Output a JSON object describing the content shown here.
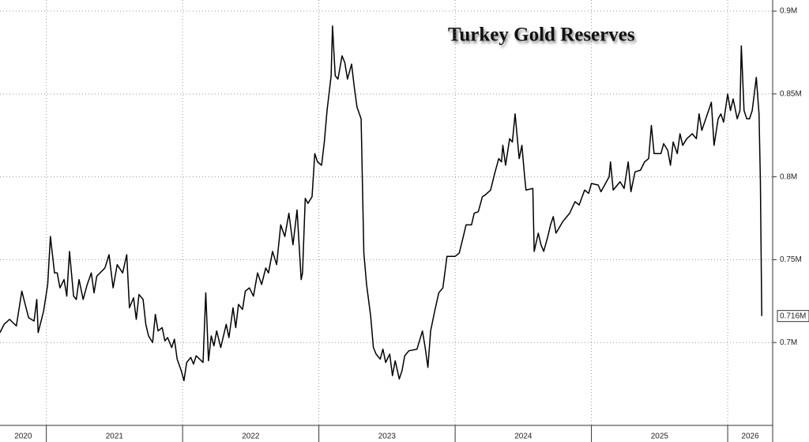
{
  "chart_data": {
    "type": "line",
    "title": "Turkey Gold Reserves",
    "x": [
      2020.66,
      2020.69,
      2020.73,
      2020.78,
      2020.82,
      2020.87,
      2020.91,
      2020.93,
      2020.94,
      2020.98,
      2021.01,
      2021.03,
      2021.06,
      2021.08,
      2021.1,
      2021.13,
      2021.15,
      2021.17,
      2021.2,
      2021.22,
      2021.24,
      2021.27,
      2021.3,
      2021.33,
      2021.35,
      2021.37,
      2021.43,
      2021.46,
      2021.49,
      2021.52,
      2021.56,
      2021.59,
      2021.61,
      2021.64,
      2021.66,
      2021.68,
      2021.71,
      2021.73,
      2021.75,
      2021.78,
      2021.8,
      2021.82,
      2021.85,
      2021.87,
      2021.89,
      2021.92,
      2021.94,
      2021.96,
      2021.99,
      2022.01,
      2022.03,
      2022.06,
      2022.08,
      2022.1,
      2022.15,
      2022.17,
      2022.19,
      2022.21,
      2022.23,
      2022.25,
      2022.28,
      2022.3,
      2022.32,
      2022.34,
      2022.37,
      2022.39,
      2022.41,
      2022.44,
      2022.46,
      2022.49,
      2022.52,
      2022.55,
      2022.58,
      2022.61,
      2022.63,
      2022.66,
      2022.69,
      2022.72,
      2022.75,
      2022.78,
      2022.81,
      2022.84,
      2022.87,
      2022.88,
      2022.9,
      2022.92,
      2022.95,
      2022.97,
      2022.99,
      2023.02,
      2023.04,
      2023.06,
      2023.09,
      2023.1,
      2023.12,
      2023.14,
      2023.17,
      2023.19,
      2023.21,
      2023.24,
      2023.26,
      2023.28,
      2023.31,
      2023.33,
      2023.35,
      2023.38,
      2023.4,
      2023.42,
      2023.45,
      2023.47,
      2023.49,
      2023.52,
      2023.54,
      2023.56,
      2023.59,
      2023.61,
      2023.63,
      2023.66,
      2023.72,
      2023.76,
      2023.78,
      2023.8,
      2023.82,
      2023.85,
      2023.88,
      2023.91,
      2023.94,
      2024.0,
      2024.03,
      2024.06,
      2024.08,
      2024.12,
      2024.14,
      2024.17,
      2024.2,
      2024.22,
      2024.26,
      2024.29,
      2024.32,
      2024.34,
      2024.35,
      2024.37,
      2024.4,
      2024.42,
      2024.44,
      2024.47,
      2024.49,
      2024.51,
      2024.52,
      2024.57,
      2024.58,
      2024.61,
      2024.63,
      2024.65,
      2024.68,
      2024.7,
      2024.72,
      2024.74,
      2024.79,
      2024.84,
      2024.88,
      2024.91,
      2024.95,
      2024.98,
      2025.0,
      2025.05,
      2025.07,
      2025.13,
      2025.14,
      2025.16,
      2025.21,
      2025.24,
      2025.27,
      2025.29,
      2025.32,
      2025.36,
      2025.39,
      2025.42,
      2025.44,
      2025.46,
      2025.51,
      2025.53,
      2025.56,
      2025.58,
      2025.6,
      2025.63,
      2025.65,
      2025.67,
      2025.7,
      2025.74,
      2025.77,
      2025.79,
      2025.81,
      2025.86,
      2025.88,
      2025.9,
      2025.93,
      2025.95,
      2025.97,
      2026.0,
      2026.02,
      2026.04,
      2026.07,
      2026.09,
      2026.1,
      2026.12,
      2026.14,
      2026.16,
      2026.18,
      2026.21,
      2026.23,
      2026.24,
      2026.25
    ],
    "values": [
      706000,
      711000,
      714000,
      710000,
      731000,
      715000,
      713000,
      726000,
      706000,
      719000,
      735000,
      764000,
      742000,
      742000,
      733000,
      738000,
      728000,
      755000,
      728000,
      726000,
      738000,
      726000,
      735000,
      742000,
      730000,
      740000,
      745000,
      753000,
      733000,
      747000,
      742000,
      753000,
      721000,
      727000,
      714000,
      729000,
      726000,
      711000,
      704000,
      700000,
      717000,
      707000,
      709000,
      701000,
      703000,
      697000,
      702000,
      690000,
      683000,
      677000,
      688000,
      691000,
      687000,
      692000,
      688000,
      730000,
      689000,
      704000,
      698000,
      707000,
      697000,
      704000,
      711000,
      703000,
      721000,
      709000,
      723000,
      720000,
      731000,
      733000,
      728000,
      742000,
      735000,
      745000,
      742000,
      755000,
      747000,
      771000,
      764000,
      778000,
      759000,
      780000,
      738000,
      742000,
      787000,
      784000,
      788000,
      814000,
      809000,
      807000,
      821000,
      840000,
      861000,
      891000,
      861000,
      859000,
      873000,
      869000,
      859000,
      868000,
      854000,
      842000,
      835000,
      754000,
      735000,
      716000,
      697000,
      693000,
      690000,
      696000,
      688000,
      693000,
      680000,
      689000,
      678000,
      683000,
      692000,
      695000,
      696000,
      707000,
      697000,
      685000,
      707000,
      719000,
      730000,
      733000,
      752000,
      752000,
      754000,
      764000,
      771000,
      771000,
      778000,
      779000,
      788000,
      789000,
      792000,
      802000,
      811000,
      809000,
      819000,
      807000,
      823000,
      821000,
      838000,
      811000,
      819000,
      800000,
      792000,
      793000,
      755000,
      766000,
      759000,
      755000,
      764000,
      771000,
      776000,
      766000,
      773000,
      778000,
      785000,
      783000,
      792000,
      790000,
      796000,
      795000,
      791000,
      800000,
      809000,
      792000,
      797000,
      793000,
      809000,
      791000,
      803000,
      804000,
      809000,
      811000,
      831000,
      814000,
      814000,
      820000,
      816000,
      807000,
      821000,
      814000,
      826000,
      819000,
      823000,
      826000,
      823000,
      838000,
      828000,
      840000,
      845000,
      819000,
      835000,
      838000,
      833000,
      850000,
      840000,
      847000,
      835000,
      840000,
      879000,
      840000,
      835000,
      835000,
      840000,
      860000,
      838000,
      797000,
      716000
    ],
    "value_labels": [
      null,
      null,
      null,
      null,
      null,
      null,
      null,
      null,
      null,
      null,
      null,
      null,
      null,
      null,
      null,
      null,
      null,
      null,
      null,
      null,
      null,
      null,
      null,
      null,
      null,
      null,
      null,
      null,
      null,
      null,
      null,
      null,
      null,
      null,
      null,
      null,
      null,
      null,
      null,
      null,
      null,
      null,
      null,
      null,
      null,
      null,
      null,
      null,
      null,
      null,
      null,
      null,
      null,
      null,
      null,
      null,
      null,
      null,
      null,
      null,
      null,
      null,
      null,
      null,
      null,
      null,
      null,
      null,
      null,
      null,
      null,
      null,
      null,
      null,
      null,
      null,
      null,
      null,
      null,
      null,
      null,
      null,
      null,
      null,
      null,
      null,
      null,
      null,
      null,
      null,
      null,
      null,
      null,
      null,
      null,
      null,
      null,
      null,
      null,
      null,
      null,
      null,
      null,
      null,
      null,
      null,
      null,
      null,
      null,
      null,
      null,
      null,
      null,
      null,
      null,
      null,
      null,
      null,
      null,
      null,
      null,
      null,
      null,
      null,
      null,
      null,
      null,
      null,
      null,
      null,
      null,
      null,
      null,
      null,
      null,
      null,
      null,
      null,
      null,
      null,
      null,
      null,
      null,
      null,
      null,
      null,
      null,
      null,
      null,
      null,
      null,
      null,
      null,
      null,
      null,
      null,
      null,
      null,
      null,
      null,
      null,
      null,
      null,
      null,
      null,
      null,
      null,
      null,
      null,
      null,
      null,
      null,
      null,
      null,
      null,
      null,
      null,
      null,
      null,
      null,
      null,
      null,
      null,
      null,
      null,
      null,
      null,
      null,
      null,
      null,
      null,
      null,
      null,
      null,
      null,
      null,
      null,
      null,
      null,
      null,
      null,
      null,
      null,
      null,
      null,
      null,
      null,
      null,
      null,
      null,
      null,
      null,
      "0.716M"
    ],
    "color": "#000000",
    "xlim": [
      2020.66,
      2026.33
    ],
    "xticks": [
      2020,
      2021,
      2022,
      2023,
      2024,
      2025,
      2026
    ],
    "ylim": [
      650000,
      906700
    ],
    "yticks": [
      {
        "value": 700000,
        "label": "0.7M"
      },
      {
        "value": 750000,
        "label": "0.75M"
      },
      {
        "value": 800000,
        "label": "0.8M"
      },
      {
        "value": 850000,
        "label": "0.85M"
      },
      {
        "value": 900000,
        "label": "0.9M"
      }
    ],
    "grid": true
  }
}
